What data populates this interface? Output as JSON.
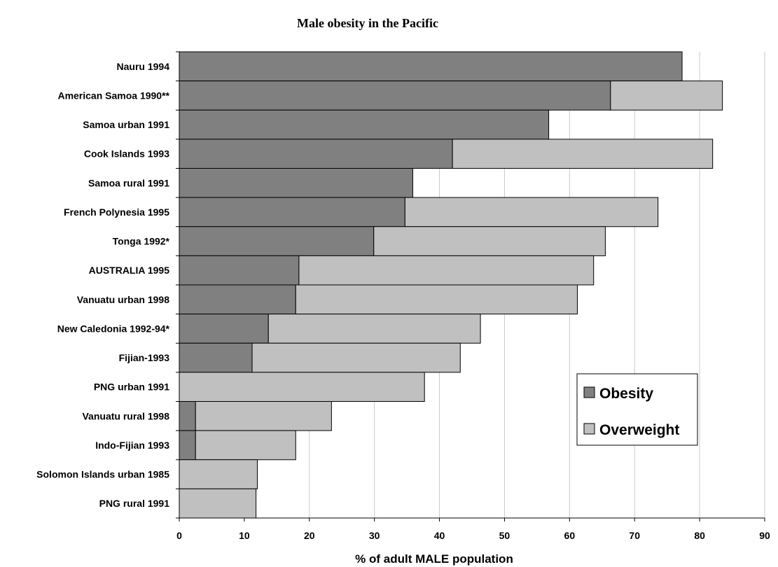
{
  "chart_data": {
    "type": "bar",
    "orientation": "horizontal",
    "stacked": true,
    "title": "Male obesity in the Pacific",
    "xlabel": "% of adult MALE population",
    "ylabel": "",
    "xlim": [
      0,
      90
    ],
    "xticks": [
      0,
      10,
      20,
      30,
      40,
      50,
      60,
      70,
      80,
      90
    ],
    "grid": "vertical",
    "legend_position": "bottom-right",
    "categories": [
      "Nauru 1994",
      "American Samoa 1990**",
      "Samoa urban 1991",
      "Cook Islands 1993",
      "Samoa rural 1991",
      "French Polynesia 1995",
      "Tonga 1992*",
      "AUSTRALIA 1995",
      "Vanuatu urban 1998",
      "New Caledonia 1992-94*",
      "Fijian-1993",
      "PNG urban 1991",
      "Vanuatu rural 1998",
      "Indo-Fijian 1993",
      "Solomon Islands urban 1985",
      "PNG rural 1991"
    ],
    "series": [
      {
        "name": "Obesity",
        "color": "#808080",
        "values": [
          77.3,
          66.3,
          56.8,
          42.0,
          35.9,
          34.7,
          29.9,
          18.4,
          17.9,
          13.7,
          11.2,
          0,
          2.5,
          2.5,
          0,
          0
        ]
      },
      {
        "name": "Overweight",
        "color": "#c0c0c0",
        "values": [
          0,
          17.2,
          0,
          40.0,
          0,
          38.9,
          35.6,
          45.3,
          43.3,
          32.6,
          32.0,
          37.7,
          20.9,
          15.4,
          12.0,
          11.8
        ]
      }
    ]
  }
}
